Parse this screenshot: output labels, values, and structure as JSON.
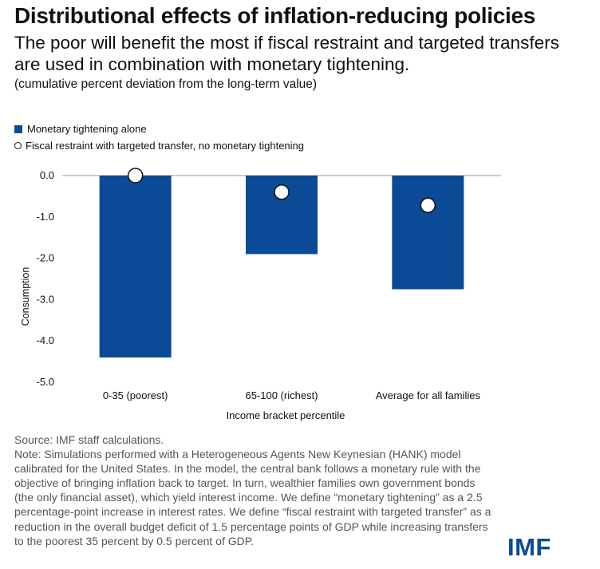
{
  "header": {
    "title": "Distributional effects of inflation-reducing policies",
    "subtitle": "The poor will benefit the most if fiscal restraint and targeted transfers are used in combination with monetary tightening.",
    "units": "(cumulative percent deviation from the long-term value)"
  },
  "legend": {
    "bar_label": "Monetary tightening alone",
    "dot_label": "Fiscal restraint with targeted transfer, no monetary tightening"
  },
  "chart_data": {
    "type": "bar",
    "categories": [
      "0-35 (poorest)",
      "65-100 (richest)",
      "Average for all families"
    ],
    "series": [
      {
        "name": "Monetary tightening alone",
        "kind": "bar",
        "values": [
          -4.4,
          -1.9,
          -2.75
        ]
      },
      {
        "name": "Fiscal restraint with targeted transfer, no monetary tightening",
        "kind": "dot",
        "values": [
          0.0,
          -0.4,
          -0.72
        ]
      }
    ],
    "yticks": [
      "0.0",
      "-1.0",
      "-2.0",
      "-3.0",
      "-4.0",
      "-5.0"
    ],
    "ytick_values": [
      0,
      -1,
      -2,
      -3,
      -4,
      -5
    ],
    "ylim": [
      -5,
      0
    ],
    "xlabel": "Income bracket percentile",
    "ylabel": "Consumption",
    "bar_color": "#0a4a97",
    "dot_fill": "#ffffff",
    "dot_stroke": "#111111"
  },
  "notes": {
    "source": "Source: IMF staff calculations.",
    "note": "Note: Simulations performed with a Heterogeneous Agents New Keynesian (HANK) model calibrated for the United States. In the model, the central bank follows a monetary rule with the objective of bringing inflation back to target. In turn, wealthier families own government bonds (the only financial asset), which yield interest income. We define “monetary tightening” as a 2.5 percentage-point increase in interest rates. We define “fiscal restraint with targeted transfer” as a reduction in the overall budget deficit of 1.5 percentage points of GDP while increasing transfers to the poorest 35 percent by 0.5 percent of GDP."
  },
  "logo": {
    "text": "IMF",
    "color": "#0a4a97"
  }
}
